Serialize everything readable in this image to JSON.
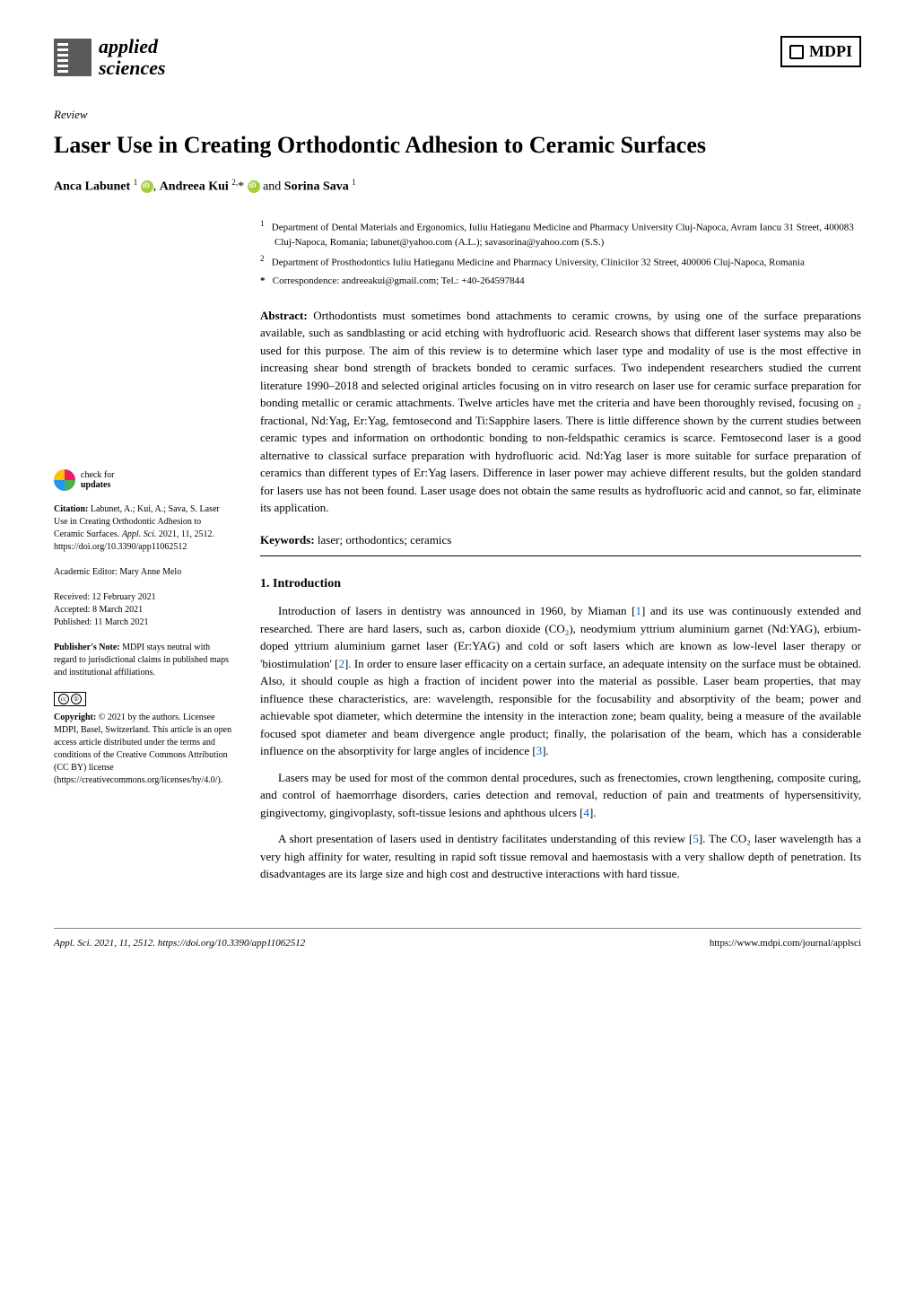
{
  "header": {
    "journal_logo_line1": "applied",
    "journal_logo_line2": "sciences",
    "publisher_logo": "MDPI"
  },
  "article": {
    "type": "Review",
    "title": "Laser Use in Creating Orthodontic Adhesion to Ceramic Surfaces",
    "authors_html": "Anca Labunet ¹ ⓘ, Andreea Kui ²,* ⓘ and Sorina Sava ¹"
  },
  "authors": {
    "name1": "Anca Labunet",
    "sup1": "1",
    "name2": "Andreea Kui",
    "sup2": "2,",
    "star": "*",
    "and": " and ",
    "name3": "Sorina Sava",
    "sup3": "1"
  },
  "affiliations": {
    "aff1_num": "1",
    "aff1_text": "Department of Dental Materials and Ergonomics, Iuliu Hatieganu Medicine and Pharmacy University Cluj-Napoca, Avram Iancu 31 Street, 400083 Cluj-Napoca, Romania; labunet@yahoo.com (A.L.); savasorina@yahoo.com (S.S.)",
    "aff2_num": "2",
    "aff2_text": "Department of Prosthodontics Iuliu Hatieganu Medicine and Pharmacy University, Clinicilor 32 Street, 400006 Cluj-Napoca, Romania",
    "corr_sym": "*",
    "corr_text": "Correspondence: andreeakui@gmail.com; Tel.: +40-264597844"
  },
  "abstract": {
    "label": "Abstract:",
    "text": " Orthodontists must sometimes bond attachments to ceramic crowns, by using one of the surface preparations available, such as sandblasting or acid etching with hydrofluoric acid. Research shows that different laser systems may also be used for this purpose. The aim of this review is to determine which laser type and modality of use is the most effective in increasing shear bond strength of brackets bonded to ceramic surfaces. Two independent researchers studied the current literature 1990–2018 and selected original articles focusing on in vitro research on laser use for ceramic surface preparation for bonding metallic or ceramic attachments. Twelve articles have met the criteria and have been thoroughly revised, focusing on ₂ fractional, Nd:Yag, Er:Yag, femtosecond and Ti:Sapphire lasers. There is little difference shown by the current studies between ceramic types and information on orthodontic bonding to non-feldspathic ceramics is scarce. Femtosecond laser is a good alternative to classical surface preparation with hydrofluoric acid. Nd:Yag laser is more suitable for surface preparation of ceramics than different types of Er:Yag lasers. Difference in laser power may achieve different results, but the golden standard for lasers use has not been found. Laser usage does not obtain the same results as hydrofluoric acid and cannot, so far, eliminate its application."
  },
  "keywords": {
    "label": "Keywords:",
    "text": " laser; orthodontics; ceramics"
  },
  "section1": {
    "heading": "1. Introduction",
    "p1a": "Introduction of lasers in dentistry was announced in 1960, by Miaman [",
    "p1ref1": "1",
    "p1b": "] and its use was continuously extended and researched. There are hard lasers, such as, carbon dioxide (CO₂), neodymium yttrium aluminium garnet (Nd:YAG), erbium-doped yttrium aluminium garnet laser (Er:YAG) and cold or soft lasers which are known as low-level laser therapy or 'biostimulation' [",
    "p1ref2": "2",
    "p1c": "]. In order to ensure laser efficacity on a certain surface, an adequate intensity on the surface must be obtained. Also, it should couple as high a fraction of incident power into the material as possible. Laser beam properties, that may influence these characteristics, are: wavelength, responsible for the focusability and absorptivity of the beam; power and achievable spot diameter, which determine the intensity in the interaction zone; beam quality, being a measure of the available focused spot diameter and beam divergence angle product; finally, the polarisation of the beam, which has a considerable influence on the absorptivity for large angles of incidence [",
    "p1ref3": "3",
    "p1d": "].",
    "p2a": "Lasers may be used for most of the common dental procedures, such as frenectomies, crown lengthening, composite curing, and control of haemorrhage disorders, caries detection and removal, reduction of pain and treatments of hypersensitivity, gingivectomy, gingivoplasty, soft-tissue lesions and aphthous ulcers [",
    "p2ref4": "4",
    "p2b": "].",
    "p3a": "A short presentation of lasers used in dentistry facilitates understanding of this review [",
    "p3ref5": "5",
    "p3b": "]. The CO₂ laser wavelength has a very high affinity for water, resulting in rapid soft tissue removal and haemostasis with a very shallow depth of penetration. Its disadvantages are its large size and high cost and destructive interactions with hard tissue."
  },
  "sidebar": {
    "check_line1": "check for",
    "check_line2": "updates",
    "citation_label": "Citation:",
    "citation_text": " Labunet, A.; Kui, A.; Sava, S. Laser Use in Creating Orthodontic Adhesion to Ceramic Surfaces. ",
    "citation_journal": "Appl. Sci.",
    "citation_rest": " 2021, 11, 2512. https://doi.org/10.3390/app11062512",
    "editor_label": "Academic Editor: ",
    "editor_name": "Mary Anne Melo",
    "received": "Received: 12 February 2021",
    "accepted": "Accepted: 8 March 2021",
    "published": "Published: 11 March 2021",
    "pubnote_label": "Publisher's Note:",
    "pubnote_text": " MDPI stays neutral with regard to jurisdictional claims in published maps and institutional affiliations.",
    "cc_label": "Copyright:",
    "cc_text": " © 2021 by the authors. Licensee MDPI, Basel, Switzerland. This article is an open access article distributed under the terms and conditions of the Creative Commons Attribution (CC BY) license (https://creativecommons.org/licenses/by/4.0/).",
    "cc_badge_cc": "cc",
    "cc_badge_by": "①"
  },
  "footer": {
    "left": "Appl. Sci. 2021, 11, 2512. https://doi.org/10.3390/app11062512",
    "right": "https://www.mdpi.com/journal/applsci"
  },
  "colors": {
    "text": "#000000",
    "background": "#ffffff",
    "orcid": "#a6ce39",
    "link": "#0066cc",
    "logo_grey": "#5a5a5a"
  }
}
